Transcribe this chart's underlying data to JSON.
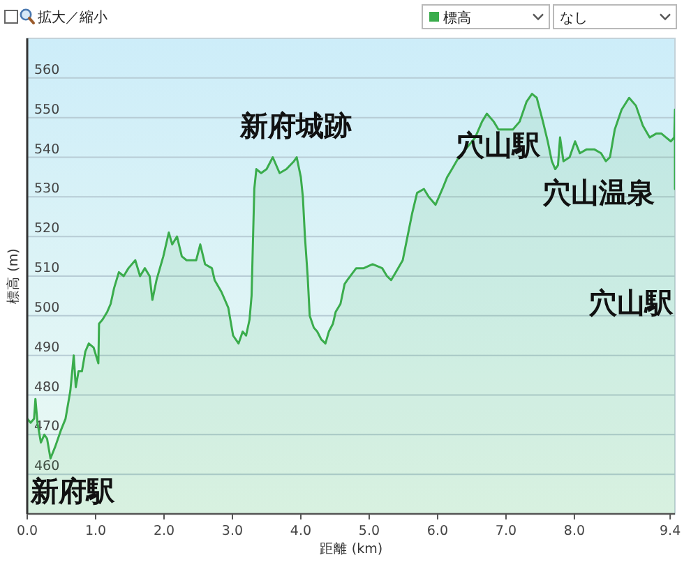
{
  "chart_data": {
    "type": "area",
    "xlabel": "距離 (km)",
    "ylabel": "標高 (m)",
    "legend": "top right",
    "grid": "y",
    "xlim": [
      0,
      9.47
    ],
    "xticks": [
      {
        "value": 0,
        "label": "0.0"
      },
      {
        "value": 1,
        "label": "1.0"
      },
      {
        "value": 2,
        "label": "2.0"
      },
      {
        "value": 3,
        "label": "3.0"
      },
      {
        "value": 4,
        "label": "4.0"
      },
      {
        "value": 5,
        "label": "5.0"
      },
      {
        "value": 6,
        "label": "6.0"
      },
      {
        "value": 7,
        "label": "7.0"
      },
      {
        "value": 8,
        "label": "8.0"
      },
      9.4
    ],
    "ylim": [
      450,
      570
    ],
    "yticks": [
      460,
      470,
      480,
      490,
      500,
      510,
      520,
      530,
      540,
      550,
      560
    ],
    "series": [
      {
        "name": "標高",
        "color": "#3aac4c",
        "x": [
          0,
          0.05,
          0.1,
          0.12,
          0.15,
          0.2,
          0.25,
          0.29,
          0.34,
          0.41,
          0.49,
          0.56,
          0.63,
          0.68,
          0.71,
          0.75,
          0.8,
          0.85,
          0.9,
          0.97,
          1.04,
          1.05,
          1.1,
          1.17,
          1.22,
          1.27,
          1.34,
          1.41,
          1.48,
          1.58,
          1.65,
          1.72,
          1.79,
          1.83,
          1.89,
          1.99,
          2.07,
          2.12,
          2.19,
          2.26,
          2.33,
          2.47,
          2.53,
          2.6,
          2.7,
          2.74,
          2.84,
          2.94,
          2.98,
          3.01,
          3.09,
          3.15,
          3.2,
          3.25,
          3.28,
          3.32,
          3.35,
          3.42,
          3.5,
          3.59,
          3.69,
          3.79,
          3.9,
          3.94,
          4.0,
          4.03,
          4.06,
          4.1,
          4.13,
          4.19,
          4.24,
          4.3,
          4.36,
          4.41,
          4.47,
          4.51,
          4.58,
          4.64,
          4.68,
          4.81,
          4.92,
          5.05,
          5.19,
          5.26,
          5.32,
          5.39,
          5.49,
          5.56,
          5.63,
          5.7,
          5.8,
          5.87,
          5.97,
          6.07,
          6.14,
          6.21,
          6.31,
          6.41,
          6.55,
          6.65,
          6.72,
          6.82,
          6.89,
          6.99,
          7.1,
          7.2,
          7.3,
          7.38,
          7.45,
          7.54,
          7.61,
          7.67,
          7.72,
          7.76,
          7.79,
          7.84,
          7.93,
          8.01,
          8.08,
          8.18,
          8.29,
          8.39,
          8.46,
          8.52,
          8.59,
          8.69,
          8.8,
          8.9,
          9.0,
          9.1,
          9.2,
          9.27,
          9.34,
          9.41,
          9.46,
          9.47,
          9.47
        ],
        "values": [
          474,
          473,
          474,
          479,
          473,
          468,
          470,
          469,
          464,
          467,
          471,
          474,
          481,
          490,
          482,
          486,
          486,
          491,
          493,
          492,
          488,
          498,
          499,
          501,
          503,
          507,
          511,
          510,
          512,
          514,
          510,
          512,
          510,
          504,
          509,
          515,
          521,
          518,
          520,
          515,
          514,
          514,
          518,
          513,
          512,
          509,
          506,
          502,
          498,
          495,
          493,
          496,
          495,
          499,
          505,
          532,
          537,
          536,
          537,
          540,
          536,
          537,
          539,
          540,
          535,
          530,
          520,
          510,
          500,
          497,
          496,
          494,
          493,
          496,
          498,
          501,
          503,
          508,
          509,
          512,
          512,
          513,
          512,
          510,
          509,
          511,
          514,
          520,
          526,
          531,
          532,
          530,
          528,
          532,
          535,
          537,
          540,
          542,
          545,
          549,
          551,
          549,
          547,
          547,
          547,
          549,
          554,
          556,
          555,
          549,
          544,
          539,
          537,
          538,
          545,
          539,
          540,
          544,
          541,
          542,
          542,
          541,
          539,
          540,
          547,
          552,
          555,
          553,
          548,
          545,
          546,
          546,
          545,
          544,
          545,
          552,
          532
        ]
      }
    ],
    "annotations": [
      "拡大／縮小",
      "なし",
      "新府駅",
      "新府城跡",
      "穴山駅",
      "穴山温泉",
      "穴山駅"
    ]
  }
}
